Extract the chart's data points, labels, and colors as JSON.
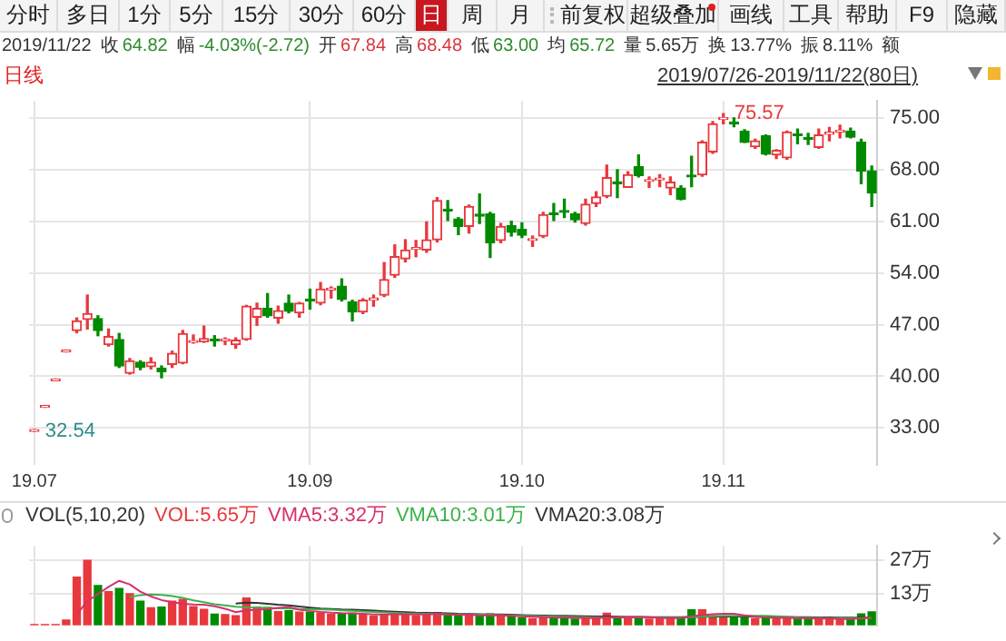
{
  "chart_data": [
    {
      "type": "other",
      "annotations": [
        "分时",
        "多日",
        "1分",
        "5分",
        "15分",
        "30分",
        "60分",
        "日",
        "周",
        "月",
        "前复权",
        "超级叠加",
        "画线",
        "工具",
        "帮助",
        "F9",
        "隐藏"
      ]
    },
    {
      "type": "other",
      "annotations": [
        "2019/11/22",
        "收",
        "64.82",
        "幅",
        "-4.03%(-2.72)",
        "开",
        "67.84",
        "高",
        "68.48",
        "低",
        "63.00",
        "均",
        "65.72",
        "量",
        "5.65万",
        "换",
        "13.77%",
        "振",
        "8.11%",
        "额"
      ],
      "colors": [
        "#333333",
        "#333333",
        "#2e8b2e",
        "#333333",
        "#2e8b2e",
        "#333333",
        "#d9363e",
        "#333333",
        "#d9363e",
        "#333333",
        "#2e8b2e",
        "#333333",
        "#2e8b2e",
        "#333333",
        "#333333",
        "#333333",
        "#333333",
        "#333333",
        "#333333",
        "#333333"
      ]
    },
    {
      "type": "candlestick",
      "title": "日线",
      "subtitle": "2019/07/26-2019/11/22(80日)",
      "categories": [
        "19.07",
        null,
        null,
        null,
        null,
        null,
        null,
        null,
        null,
        null,
        null,
        null,
        null,
        null,
        null,
        null,
        null,
        null,
        null,
        null,
        null,
        null,
        null,
        null,
        null,
        null,
        "19.09",
        null,
        null,
        null,
        null,
        null,
        null,
        null,
        null,
        null,
        null,
        null,
        null,
        null,
        null,
        null,
        null,
        null,
        null,
        null,
        "19.10",
        null,
        null,
        null,
        null,
        null,
        null,
        null,
        null,
        null,
        null,
        null,
        null,
        null,
        null,
        null,
        null,
        null,
        null,
        "19.11",
        null,
        null,
        null,
        null,
        null,
        null,
        null,
        null,
        null,
        null,
        null,
        null,
        null,
        null
      ],
      "ohlc": [
        [
          32.54,
          32.54,
          32.54,
          32.54
        ],
        [
          35.8,
          35.8,
          35.8,
          35.8
        ],
        [
          39.4,
          39.4,
          39.4,
          39.4
        ],
        [
          43.3,
          43.3,
          43.3,
          43.3
        ],
        [
          46.2,
          47.9,
          45.9,
          47.5
        ],
        [
          47.7,
          51.0,
          46.4,
          48.5
        ],
        [
          47.8,
          48.2,
          45.5,
          46.2
        ],
        [
          44.3,
          46.4,
          44.1,
          45.4
        ],
        [
          45.0,
          45.8,
          41.2,
          41.4
        ],
        [
          40.4,
          42.4,
          40.3,
          42.1
        ],
        [
          41.9,
          42.1,
          40.9,
          41.2
        ],
        [
          41.3,
          42.5,
          41.0,
          41.9
        ],
        [
          41.1,
          41.4,
          39.8,
          40.6
        ],
        [
          41.6,
          43.4,
          41.2,
          43.1
        ],
        [
          41.8,
          46.2,
          41.7,
          45.8
        ],
        [
          44.6,
          45.6,
          44.5,
          44.8
        ],
        [
          44.7,
          46.8,
          44.6,
          45.1
        ],
        [
          44.9,
          45.5,
          44.1,
          44.8
        ],
        [
          44.8,
          45.2,
          44.3,
          44.9
        ],
        [
          44.3,
          45.2,
          43.8,
          44.9
        ],
        [
          45.0,
          49.6,
          44.9,
          49.5
        ],
        [
          48.0,
          49.9,
          46.9,
          49.2
        ],
        [
          49.2,
          51.2,
          48.0,
          48.2
        ],
        [
          47.9,
          49.5,
          47.2,
          48.9
        ],
        [
          49.9,
          51.0,
          48.6,
          48.8
        ],
        [
          48.6,
          50.0,
          48.0,
          49.9
        ],
        [
          50.3,
          51.8,
          49.1,
          50.2
        ],
        [
          49.9,
          52.7,
          49.7,
          51.8
        ],
        [
          51.7,
          52.1,
          50.6,
          51.8
        ],
        [
          52.2,
          53.2,
          50.2,
          50.4
        ],
        [
          50.1,
          50.3,
          47.5,
          48.7
        ],
        [
          48.7,
          50.5,
          48.5,
          50.3
        ],
        [
          50.3,
          51.0,
          49.5,
          50.6
        ],
        [
          51.0,
          55.4,
          50.8,
          53.1
        ],
        [
          53.7,
          57.8,
          53.4,
          56.2
        ],
        [
          55.9,
          58.5,
          55.5,
          57.1
        ],
        [
          57.2,
          58.4,
          56.2,
          57.4
        ],
        [
          57.1,
          60.9,
          56.8,
          58.5
        ],
        [
          58.5,
          64.2,
          58.2,
          63.8
        ],
        [
          62.5,
          63.8,
          61.1,
          62.4
        ],
        [
          61.3,
          61.5,
          59.2,
          60.3
        ],
        [
          60.3,
          63.2,
          59.4,
          63.0
        ],
        [
          61.8,
          64.7,
          60.7,
          61.7
        ],
        [
          62.0,
          62.2,
          56.1,
          58.1
        ],
        [
          58.4,
          60.7,
          58.1,
          60.3
        ],
        [
          60.4,
          61.0,
          59.0,
          59.5
        ],
        [
          59.9,
          60.8,
          58.8,
          59.1
        ],
        [
          58.4,
          59.0,
          57.6,
          58.6
        ],
        [
          59.0,
          62.2,
          58.8,
          61.9
        ],
        [
          62.0,
          63.4,
          61.1,
          61.9
        ],
        [
          62.3,
          64.0,
          61.5,
          62.2
        ],
        [
          62.0,
          62.2,
          60.9,
          61.2
        ],
        [
          60.7,
          64.0,
          60.5,
          63.3
        ],
        [
          63.4,
          65.0,
          63.0,
          64.3
        ],
        [
          64.4,
          68.6,
          64.2,
          66.9
        ],
        [
          66.2,
          68.0,
          64.2,
          66.1
        ],
        [
          65.6,
          67.7,
          65.6,
          67.3
        ],
        [
          68.4,
          70.0,
          67.0,
          67.2
        ],
        [
          66.4,
          67.0,
          65.6,
          66.5
        ],
        [
          66.6,
          67.3,
          65.7,
          66.7
        ],
        [
          65.5,
          67.0,
          64.6,
          66.3
        ],
        [
          65.5,
          65.8,
          63.9,
          64.0
        ],
        [
          67.1,
          69.8,
          65.7,
          67.0
        ],
        [
          67.3,
          71.9,
          67.1,
          71.7
        ],
        [
          70.4,
          74.5,
          70.2,
          74.2
        ],
        [
          74.8,
          75.57,
          74.2,
          75.0
        ],
        [
          74.3,
          75.0,
          73.8,
          74.2
        ],
        [
          73.2,
          73.4,
          71.7,
          71.7
        ],
        [
          71.1,
          72.1,
          70.9,
          71.9
        ],
        [
          72.6,
          72.7,
          70.0,
          70.1
        ],
        [
          70.0,
          70.7,
          69.5,
          70.6
        ],
        [
          69.6,
          73.2,
          69.4,
          73.1
        ],
        [
          72.7,
          73.5,
          71.5,
          72.6
        ],
        [
          72.2,
          72.9,
          71.4,
          72.1
        ],
        [
          71.0,
          73.5,
          70.9,
          72.7
        ],
        [
          72.8,
          73.7,
          71.9,
          72.9
        ],
        [
          73.1,
          74.0,
          72.3,
          73.3
        ],
        [
          73.2,
          73.6,
          72.3,
          72.4
        ],
        [
          71.7,
          72.1,
          66.1,
          67.8
        ],
        [
          67.84,
          68.48,
          63.0,
          64.82
        ]
      ],
      "colors": [
        "#e8383d",
        "#e8383d",
        "#e8383d",
        "#e8383d",
        "#e8383d",
        "#e8383d",
        "#008a00",
        "#e8383d",
        "#008a00",
        "#e8383d",
        "#008a00",
        "#e8383d",
        "#008a00",
        "#e8383d",
        "#e8383d",
        "#e8383d",
        "#e8383d",
        "#008a00",
        "#e8383d",
        "#e8383d",
        "#e8383d",
        "#e8383d",
        "#008a00",
        "#e8383d",
        "#008a00",
        "#e8383d",
        "#008a00",
        "#e8383d",
        "#e8383d",
        "#008a00",
        "#008a00",
        "#e8383d",
        "#e8383d",
        "#e8383d",
        "#e8383d",
        "#e8383d",
        "#e8383d",
        "#e8383d",
        "#e8383d",
        "#008a00",
        "#008a00",
        "#e8383d",
        "#008a00",
        "#008a00",
        "#e8383d",
        "#008a00",
        "#008a00",
        "#e8383d",
        "#e8383d",
        "#008a00",
        "#008a00",
        "#008a00",
        "#e8383d",
        "#e8383d",
        "#e8383d",
        "#008a00",
        "#e8383d",
        "#008a00",
        "#e8383d",
        "#e8383d",
        "#e8383d",
        "#008a00",
        "#008a00",
        "#e8383d",
        "#e8383d",
        "#e8383d",
        "#008a00",
        "#008a00",
        "#e8383d",
        "#008a00",
        "#e8383d",
        "#e8383d",
        "#008a00",
        "#008a00",
        "#e8383d",
        "#e8383d",
        "#e8383d",
        "#008a00",
        "#008a00",
        "#008a00"
      ],
      "ylim": [
        28,
        77.3
      ],
      "yticks": [
        {
          "value": 33,
          "label": "33.00"
        },
        {
          "value": 40,
          "label": "40.00"
        },
        {
          "value": 47,
          "label": "47.00"
        },
        {
          "value": 54,
          "label": "54.00"
        },
        {
          "value": 61,
          "label": "61.00"
        },
        {
          "value": 68,
          "label": "68.00"
        },
        {
          "value": 75,
          "label": "75.00"
        }
      ],
      "grid": true,
      "annotations": [
        "75.57",
        "32.54"
      ]
    },
    {
      "type": "bar",
      "title": "VOL(5,10,20)",
      "legend": "top left",
      "tick_labels": "y",
      "grid": true,
      "categories": [
        "19.07",
        null,
        null,
        null,
        null,
        null,
        null,
        null,
        null,
        null,
        null,
        null,
        null,
        null,
        null,
        null,
        null,
        null,
        null,
        null,
        null,
        null,
        null,
        null,
        null,
        null,
        "19.09",
        null,
        null,
        null,
        null,
        null,
        null,
        null,
        null,
        null,
        null,
        null,
        null,
        null,
        null,
        null,
        null,
        null,
        null,
        null,
        "19.10",
        null,
        null,
        null,
        null,
        null,
        null,
        null,
        null,
        null,
        null,
        null,
        null,
        null,
        null,
        null,
        null,
        null,
        null,
        "19.11",
        null,
        null,
        null,
        null,
        null,
        null,
        null,
        null,
        null,
        null,
        null,
        null,
        null,
        null
      ],
      "ylim": [
        0,
        33
      ],
      "yticks": [
        {
          "value": 13,
          "label": "13万"
        },
        {
          "value": 27,
          "label": "27万"
        }
      ],
      "series": [
        {
          "name": "VOL:5.65万",
          "type": "bar",
          "color": "#e8383d",
          "colors": [
            "#e8383d",
            "#e8383d",
            "#e8383d",
            "#e8383d",
            "#e8383d",
            "#e8383d",
            "#008a00",
            "#e8383d",
            "#008a00",
            "#e8383d",
            "#008a00",
            "#e8383d",
            "#008a00",
            "#e8383d",
            "#e8383d",
            "#e8383d",
            "#e8383d",
            "#008a00",
            "#e8383d",
            "#e8383d",
            "#e8383d",
            "#e8383d",
            "#008a00",
            "#e8383d",
            "#008a00",
            "#e8383d",
            "#008a00",
            "#e8383d",
            "#e8383d",
            "#008a00",
            "#008a00",
            "#e8383d",
            "#e8383d",
            "#e8383d",
            "#e8383d",
            "#e8383d",
            "#e8383d",
            "#e8383d",
            "#e8383d",
            "#008a00",
            "#008a00",
            "#e8383d",
            "#008a00",
            "#008a00",
            "#e8383d",
            "#008a00",
            "#008a00",
            "#e8383d",
            "#e8383d",
            "#008a00",
            "#008a00",
            "#008a00",
            "#e8383d",
            "#e8383d",
            "#e8383d",
            "#008a00",
            "#e8383d",
            "#008a00",
            "#e8383d",
            "#e8383d",
            "#e8383d",
            "#008a00",
            "#008a00",
            "#e8383d",
            "#e8383d",
            "#e8383d",
            "#008a00",
            "#008a00",
            "#e8383d",
            "#008a00",
            "#e8383d",
            "#e8383d",
            "#008a00",
            "#008a00",
            "#e8383d",
            "#e8383d",
            "#e8383d",
            "#008a00",
            "#008a00",
            "#008a00"
          ],
          "values": [
            0.3,
            0.3,
            0.3,
            2.2,
            20,
            27,
            16.5,
            14,
            15.3,
            13.1,
            10,
            7.3,
            7.6,
            10,
            10.8,
            7.8,
            6.6,
            4.7,
            4.5,
            4,
            11.4,
            7.6,
            7.4,
            5.7,
            6.1,
            5.5,
            5.5,
            5.0,
            4.6,
            4.8,
            5.0,
            4.5,
            3.8,
            4.6,
            5.2,
            4.5,
            4.0,
            4.4,
            5.3,
            4.4,
            4.0,
            4.4,
            4.0,
            4.8,
            4.0,
            3.6,
            3.2,
            2.8,
            3.4,
            3.0,
            2.8,
            2.6,
            3.2,
            3.0,
            5.0,
            3.4,
            3.2,
            3.0,
            2.6,
            2.8,
            3.0,
            3.2,
            6.5,
            6.5,
            4.0,
            3.6,
            3.2,
            3.4,
            2.8,
            3.2,
            2.8,
            3.2,
            2.6,
            2.4,
            2.8,
            2.6,
            2.6,
            3.0,
            4.8,
            5.6
          ]
        },
        {
          "name": "VMA5:3.32万",
          "type": "line",
          "color": "#d6306e",
          "values": [
            null,
            null,
            null,
            null,
            4.6,
            10,
            13,
            16,
            18.5,
            17,
            14,
            12,
            10.5,
            9.6,
            9,
            8.7,
            8.6,
            7.9,
            6.9,
            5.5,
            6.2,
            6.4,
            6.8,
            7.3,
            7.6,
            6.5,
            6,
            5.6,
            5.3,
            5.1,
            5,
            4.8,
            4.5,
            4.5,
            4.6,
            4.5,
            4.5,
            4.5,
            4.7,
            4.5,
            4.4,
            4.4,
            4.2,
            4.3,
            4.2,
            4,
            3.8,
            3.6,
            3.4,
            3.3,
            3.2,
            3.1,
            3,
            3,
            3.2,
            3.3,
            3.4,
            3.5,
            3.4,
            3.1,
            3,
            3,
            3.8,
            4.3,
            4.6,
            4.8,
            4.8,
            4.2,
            3.6,
            3.3,
            3.1,
            3.1,
            3,
            2.9,
            2.8,
            2.8,
            2.7,
            2.7,
            2.9,
            3.3
          ]
        },
        {
          "name": "VMA10:3.01万",
          "type": "line",
          "color": "#3cb34a",
          "values": [
            null,
            null,
            null,
            null,
            null,
            null,
            null,
            null,
            null,
            11.8,
            12.5,
            12.8,
            12.6,
            12.2,
            11.4,
            10.4,
            9.6,
            8.8,
            8.3,
            7.7,
            7.5,
            7.4,
            7.3,
            7.1,
            7,
            6.8,
            6.7,
            6.6,
            6.5,
            6.2,
            6,
            5.8,
            5.6,
            5.4,
            5.2,
            5,
            4.9,
            4.8,
            4.7,
            4.6,
            4.5,
            4.5,
            4.4,
            4.4,
            4.3,
            4.2,
            4.1,
            4,
            3.8,
            3.7,
            3.6,
            3.5,
            3.4,
            3.3,
            3.3,
            3.3,
            3.3,
            3.3,
            3.3,
            3.2,
            3.2,
            3.2,
            3.4,
            3.6,
            3.8,
            4,
            4,
            4,
            4,
            4,
            3.8,
            3.5,
            3.3,
            3.2,
            3.1,
            3,
            3,
            2.9,
            2.9,
            3.0
          ]
        },
        {
          "name": "VMA20:3.08万",
          "type": "line",
          "color": "#333333",
          "values": [
            null,
            null,
            null,
            null,
            null,
            null,
            null,
            null,
            null,
            null,
            null,
            null,
            null,
            null,
            null,
            null,
            null,
            null,
            null,
            9.1,
            9.4,
            9.3,
            9,
            8.6,
            8.3,
            7.8,
            7.4,
            7,
            6.8,
            6.6,
            6.5,
            6.3,
            6.1,
            5.9,
            5.7,
            5.5,
            5.3,
            5.2,
            5.1,
            5,
            4.8,
            4.7,
            4.6,
            4.5,
            4.5,
            4.4,
            4.3,
            4.2,
            4.1,
            4,
            4,
            3.9,
            3.8,
            3.7,
            3.7,
            3.6,
            3.5,
            3.5,
            3.4,
            3.4,
            3.4,
            3.4,
            3.5,
            3.6,
            3.6,
            3.7,
            3.7,
            3.7,
            3.6,
            3.6,
            3.5,
            3.5,
            3.4,
            3.4,
            3.3,
            3.3,
            3.2,
            3.2,
            3.1,
            3.1
          ]
        }
      ]
    }
  ]
}
